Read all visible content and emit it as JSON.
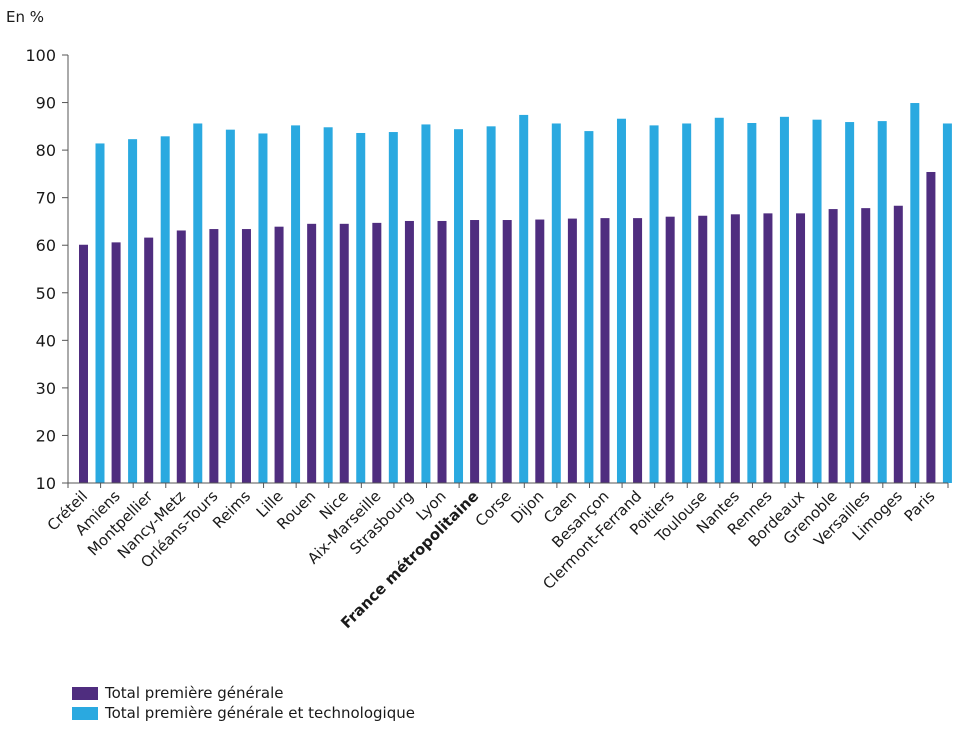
{
  "chart_data": {
    "type": "bar",
    "unit_label": "En %",
    "ylim": [
      10,
      100
    ],
    "yticks": [
      10,
      20,
      30,
      40,
      50,
      60,
      70,
      80,
      90,
      100
    ],
    "grid": false,
    "legend_position": "bottom-left",
    "highlight_category": "France métropolitaine",
    "categories": [
      "Créteil",
      "Amiens",
      "Montpellier",
      "Nancy-Metz",
      "Orléans-Tours",
      "Reims",
      "Lille",
      "Rouen",
      "Nice",
      "Aix-Marseille",
      "Strasbourg",
      "Lyon",
      "France métropolitaine",
      "Corse",
      "Dijon",
      "Caen",
      "Besançon",
      "Clermont-Ferrand",
      "Poitiers",
      "Toulouse",
      "Nantes",
      "Rennes",
      "Bordeaux",
      "Grenoble",
      "Versailles",
      "Limoges",
      "Paris"
    ],
    "series": [
      {
        "name": "Total première générale",
        "color": "#4f2d7f",
        "values": [
          60.1,
          60.6,
          61.6,
          63.1,
          63.4,
          63.4,
          63.9,
          64.5,
          64.5,
          64.7,
          65.1,
          65.1,
          65.3,
          65.3,
          65.4,
          65.6,
          65.7,
          65.7,
          66.0,
          66.2,
          66.5,
          66.7,
          66.7,
          67.6,
          67.8,
          68.3,
          75.4
        ]
      },
      {
        "name": "Total première générale et technologique",
        "color": "#2aa9e0",
        "values": [
          81.4,
          82.3,
          82.9,
          85.6,
          84.3,
          83.5,
          85.2,
          84.8,
          83.6,
          83.8,
          85.4,
          84.4,
          85.0,
          87.4,
          85.6,
          84.0,
          86.6,
          85.2,
          85.6,
          86.8,
          85.7,
          87.0,
          86.4,
          85.9,
          86.1,
          89.9,
          85.6
        ]
      }
    ]
  }
}
